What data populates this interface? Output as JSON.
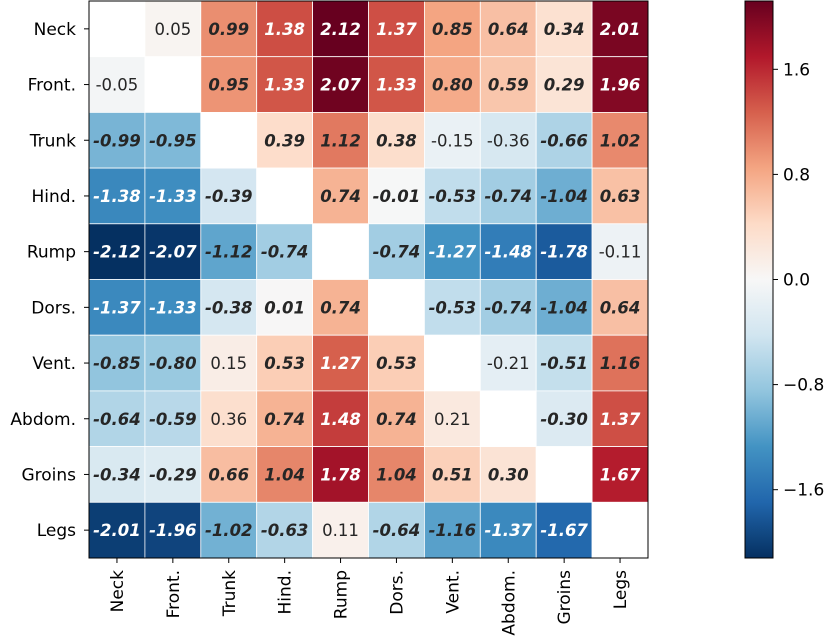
{
  "chart_data": {
    "type": "heatmap",
    "title": "",
    "xlabel": "",
    "ylabel": "",
    "rows": [
      "Neck",
      "Front.",
      "Trunk",
      "Hind.",
      "Rump",
      "Dors.",
      "Vent.",
      "Abdom.",
      "Groins",
      "Legs"
    ],
    "cols": [
      "Neck",
      "Front.",
      "Trunk",
      "Hind.",
      "Rump",
      "Dors.",
      "Vent.",
      "Abdom.",
      "Groins",
      "Legs"
    ],
    "values": [
      [
        null,
        0.05,
        0.99,
        1.38,
        2.12,
        1.37,
        0.85,
        0.64,
        0.34,
        2.01
      ],
      [
        -0.05,
        null,
        0.95,
        1.33,
        2.07,
        1.33,
        0.8,
        0.59,
        0.29,
        1.96
      ],
      [
        -0.99,
        -0.95,
        null,
        0.39,
        1.12,
        0.38,
        -0.15,
        -0.36,
        -0.66,
        1.02
      ],
      [
        -1.38,
        -1.33,
        -0.39,
        null,
        0.74,
        -0.01,
        -0.53,
        -0.74,
        -1.04,
        0.63
      ],
      [
        -2.12,
        -2.07,
        -1.12,
        -0.74,
        null,
        -0.74,
        -1.27,
        -1.48,
        -1.78,
        -0.11
      ],
      [
        -1.37,
        -1.33,
        -0.38,
        0.01,
        0.74,
        null,
        -0.53,
        -0.74,
        -1.04,
        0.64
      ],
      [
        -0.85,
        -0.8,
        0.15,
        0.53,
        1.27,
        0.53,
        null,
        -0.21,
        -0.51,
        1.16
      ],
      [
        -0.64,
        -0.59,
        0.36,
        0.74,
        1.48,
        0.74,
        0.21,
        null,
        -0.3,
        1.37
      ],
      [
        -0.34,
        -0.29,
        0.66,
        1.04,
        1.78,
        1.04,
        0.51,
        0.3,
        null,
        1.67
      ],
      [
        -2.01,
        -1.96,
        -1.02,
        -0.63,
        0.11,
        -0.64,
        -1.16,
        -1.37,
        -1.67,
        null
      ]
    ],
    "labels": [
      [
        "",
        "0.05",
        "0.99",
        "1.38",
        "2.12",
        "1.37",
        "0.85",
        "0.64",
        "0.34",
        "2.01"
      ],
      [
        "-0.05",
        "",
        "0.95",
        "1.33",
        "2.07",
        "1.33",
        "0.80",
        "0.59",
        "0.29",
        "1.96"
      ],
      [
        "-0.99",
        "-0.95",
        "",
        "0.39",
        "1.12",
        "0.38",
        "-0.15",
        "-0.36",
        "-0.66",
        "1.02"
      ],
      [
        "-1.38",
        "-1.33",
        "-0.39",
        "",
        "0.74",
        "-0.01",
        "-0.53",
        "-0.74",
        "-1.04",
        "0.63"
      ],
      [
        "-2.12",
        "-2.07",
        "-1.12",
        "-0.74",
        "",
        "-0.74",
        "-1.27",
        "-1.48",
        "-1.78",
        "-0.11"
      ],
      [
        "-1.37",
        "-1.33",
        "-0.38",
        "0.01",
        "0.74",
        "",
        "-0.53",
        "-0.74",
        "-1.04",
        "0.64"
      ],
      [
        "-0.85",
        "-0.80",
        "0.15",
        "0.53",
        "1.27",
        "0.53",
        "",
        "-0.21",
        "-0.51",
        "1.16"
      ],
      [
        "-0.64",
        "-0.59",
        "0.36",
        "0.74",
        "1.48",
        "0.74",
        "0.21",
        "",
        "-0.30",
        "1.37"
      ],
      [
        "-0.34",
        "-0.29",
        "0.66",
        "1.04",
        "1.78",
        "1.04",
        "0.51",
        "0.30",
        "",
        "1.67"
      ],
      [
        "-2.01",
        "-1.96",
        "-1.02",
        "-0.63",
        "0.11",
        "-0.64",
        "-1.16",
        "-1.37",
        "-1.67",
        ""
      ]
    ],
    "emphasis": [
      [
        false,
        false,
        true,
        true,
        true,
        true,
        true,
        true,
        true,
        true
      ],
      [
        false,
        false,
        true,
        true,
        true,
        true,
        true,
        true,
        true,
        true
      ],
      [
        true,
        true,
        false,
        true,
        true,
        true,
        false,
        false,
        true,
        true
      ],
      [
        true,
        true,
        true,
        false,
        true,
        true,
        true,
        true,
        true,
        true
      ],
      [
        true,
        true,
        true,
        true,
        false,
        true,
        true,
        true,
        true,
        false
      ],
      [
        true,
        true,
        true,
        true,
        true,
        false,
        true,
        true,
        true,
        true
      ],
      [
        true,
        true,
        false,
        true,
        true,
        true,
        false,
        false,
        true,
        true
      ],
      [
        true,
        true,
        false,
        true,
        true,
        true,
        false,
        false,
        true,
        true
      ],
      [
        true,
        true,
        true,
        true,
        true,
        true,
        true,
        true,
        false,
        true
      ],
      [
        true,
        true,
        true,
        true,
        false,
        true,
        true,
        true,
        true,
        false
      ]
    ],
    "colormap": "RdBu_r",
    "colormap_stops": [
      "#053061",
      "#2166ac",
      "#4393c3",
      "#92c5de",
      "#d1e5f0",
      "#f7f7f7",
      "#fddbc7",
      "#f4a582",
      "#d6604d",
      "#b2182b",
      "#67001f"
    ],
    "vmin": -2.12,
    "vmax": 2.12,
    "colorbar": {
      "ticks": [
        1.6,
        0.8,
        0.0,
        -0.8,
        -1.6
      ],
      "tick_labels": [
        "1.6",
        "0.8",
        "0.0",
        "−0.8",
        "−1.6"
      ]
    },
    "text_colors": {
      "on_light": "#262626",
      "on_dark": "#ffffff"
    }
  }
}
